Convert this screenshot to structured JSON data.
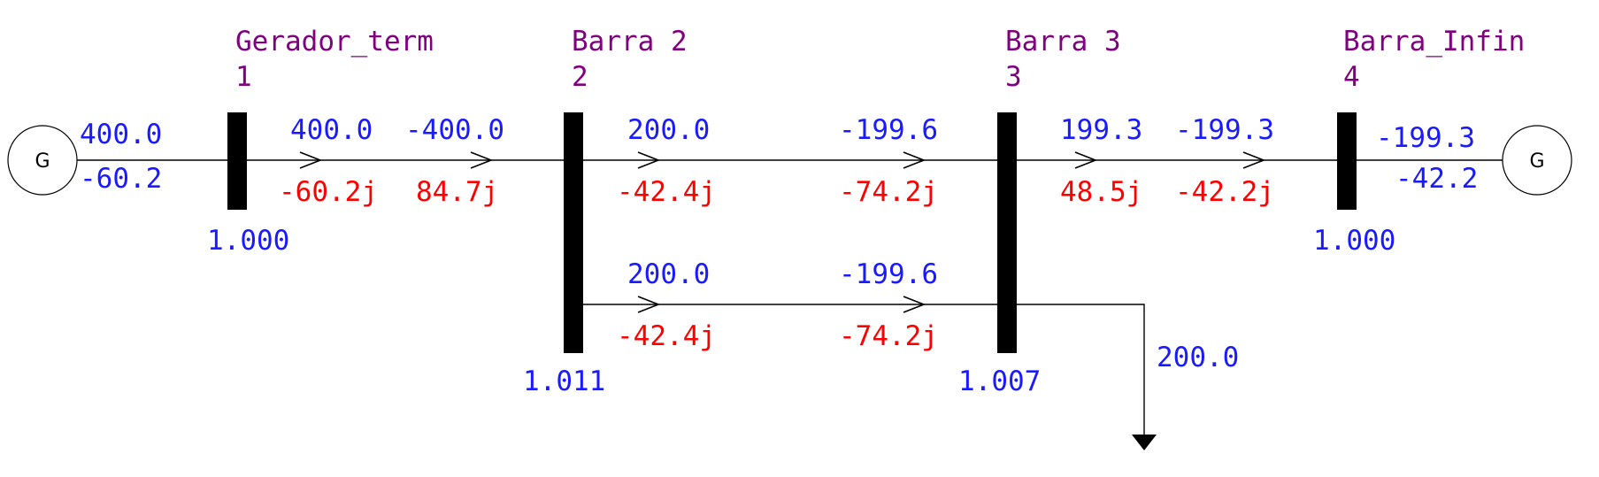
{
  "colors": {
    "bus_label": "#800080",
    "active_power": "#1a1aff",
    "reactive_power": "#ff0000",
    "line": "#000000"
  },
  "generators": {
    "left": {
      "symbol": "G"
    },
    "right": {
      "symbol": "G"
    }
  },
  "buses": [
    {
      "name": "Gerador_term",
      "number": "1",
      "voltage": "1.000"
    },
    {
      "name": "Barra 2",
      "number": "2",
      "voltage": "1.011"
    },
    {
      "name": "Barra 3",
      "number": "3",
      "voltage": "1.007"
    },
    {
      "name": "Barra_Infin",
      "number": "4",
      "voltage": "1.000"
    }
  ],
  "generator_flows": {
    "left": {
      "p": "400.0",
      "q": "-60.2"
    },
    "right": {
      "p": "-199.3",
      "q": "-42.2"
    }
  },
  "branches": [
    {
      "id": "1-2",
      "from_p": "400.0",
      "to_p": "-400.0",
      "from_q": "-60.2j",
      "to_q": "84.7j"
    },
    {
      "id": "2-3 circuit 1",
      "from_p": "200.0",
      "to_p": "-199.6",
      "from_q": "-42.4j",
      "to_q": "-74.2j"
    },
    {
      "id": "2-3 circuit 2",
      "from_p": "200.0",
      "to_p": "-199.6",
      "from_q": "-42.4j",
      "to_q": "-74.2j"
    },
    {
      "id": "3-4",
      "from_p": "199.3",
      "to_p": "-199.3",
      "from_q": "48.5j",
      "to_q": "-42.2j"
    }
  ],
  "load": {
    "p": "200.0"
  }
}
